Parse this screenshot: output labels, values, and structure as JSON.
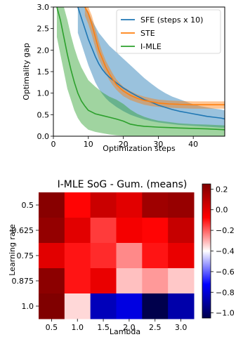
{
  "chart_data": [
    {
      "type": "line",
      "title": "",
      "xlabel": "Optimization steps",
      "ylabel": "Optimality gap",
      "xlim": [
        0,
        49
      ],
      "ylim": [
        0.0,
        3.0
      ],
      "xticks": [
        0,
        10,
        20,
        30,
        40
      ],
      "yticks": [
        0.0,
        0.5,
        1.0,
        1.5,
        2.0,
        2.5,
        3.0
      ],
      "ytick_labels": [
        "0.0",
        "0.5",
        "1.0",
        "1.5",
        "2.0",
        "2.5",
        "3.0"
      ],
      "legend_position": "top-right",
      "grid": false,
      "series": [
        {
          "name": "SFE (steps x 10)",
          "color": "#1f77b4",
          "x": [
            7,
            8,
            9,
            10,
            11,
            12,
            13,
            14,
            15,
            16,
            18,
            20,
            22,
            24,
            26,
            28,
            30,
            32,
            34,
            36,
            38,
            40,
            42,
            44,
            46,
            48,
            49
          ],
          "y": [
            3.0,
            2.75,
            2.5,
            2.25,
            2.05,
            1.85,
            1.68,
            1.55,
            1.45,
            1.37,
            1.24,
            1.12,
            1.02,
            0.93,
            0.85,
            0.79,
            0.72,
            0.67,
            0.62,
            0.58,
            0.55,
            0.52,
            0.49,
            0.46,
            0.44,
            0.42,
            0.4
          ],
          "upper": [
            3.0,
            3.0,
            3.0,
            2.9,
            2.7,
            2.55,
            2.4,
            2.3,
            2.2,
            2.1,
            1.95,
            1.8,
            1.65,
            1.5,
            1.35,
            1.22,
            1.1,
            1.0,
            0.92,
            0.86,
            0.8,
            0.74,
            0.7,
            0.67,
            0.64,
            0.62,
            0.6
          ],
          "lower": [
            2.4,
            2.15,
            1.9,
            1.65,
            1.45,
            1.25,
            1.1,
            0.98,
            0.88,
            0.8,
            0.68,
            0.58,
            0.5,
            0.44,
            0.39,
            0.35,
            0.32,
            0.3,
            0.28,
            0.26,
            0.25,
            0.24,
            0.23,
            0.22,
            0.21,
            0.2,
            0.2
          ]
        },
        {
          "name": "STE",
          "color": "#ff7f0e",
          "x": [
            9,
            10,
            11,
            12,
            13,
            14,
            15,
            16,
            17,
            18,
            19,
            20,
            22,
            24,
            26,
            28,
            30,
            33,
            36,
            40,
            44,
            49
          ],
          "y": [
            3.0,
            2.85,
            2.6,
            2.3,
            2.0,
            1.8,
            1.6,
            1.45,
            1.32,
            1.2,
            1.12,
            1.05,
            0.95,
            0.88,
            0.83,
            0.8,
            0.77,
            0.75,
            0.74,
            0.73,
            0.73,
            0.73
          ],
          "upper": [
            3.0,
            3.0,
            2.8,
            2.5,
            2.2,
            1.95,
            1.75,
            1.6,
            1.45,
            1.32,
            1.23,
            1.15,
            1.05,
            0.97,
            0.92,
            0.88,
            0.85,
            0.83,
            0.82,
            0.81,
            0.81,
            0.81
          ],
          "lower": [
            2.8,
            2.6,
            2.35,
            2.05,
            1.8,
            1.62,
            1.45,
            1.3,
            1.18,
            1.08,
            1.0,
            0.93,
            0.84,
            0.78,
            0.73,
            0.7,
            0.68,
            0.66,
            0.65,
            0.64,
            0.64,
            0.64
          ]
        },
        {
          "name": "I-MLE",
          "color": "#2ca02c",
          "x": [
            1,
            2,
            3,
            4,
            5,
            6,
            7,
            8,
            9,
            10,
            12,
            14,
            16,
            18,
            20,
            22,
            24,
            26,
            28,
            30,
            33,
            36,
            40,
            44,
            49
          ],
          "y": [
            3.0,
            2.7,
            2.3,
            1.9,
            1.55,
            1.25,
            1.0,
            0.82,
            0.7,
            0.6,
            0.52,
            0.48,
            0.44,
            0.4,
            0.35,
            0.28,
            0.25,
            0.23,
            0.22,
            0.21,
            0.2,
            0.19,
            0.18,
            0.17,
            0.15
          ],
          "upper": [
            3.0,
            3.0,
            3.0,
            2.7,
            2.35,
            2.05,
            1.8,
            1.6,
            1.45,
            1.3,
            1.15,
            1.02,
            0.92,
            0.85,
            0.75,
            0.62,
            0.52,
            0.45,
            0.4,
            0.36,
            0.33,
            0.3,
            0.28,
            0.27,
            0.25
          ],
          "lower": [
            2.3,
            1.9,
            1.5,
            1.1,
            0.85,
            0.6,
            0.42,
            0.3,
            0.22,
            0.15,
            0.1,
            0.07,
            0.04,
            0.02,
            0.01,
            0.0,
            0.0,
            0.0,
            0.0,
            0.0,
            0.0,
            0.0,
            0.0,
            0.0,
            0.0
          ]
        }
      ]
    },
    {
      "type": "heatmap",
      "title": "I-MLE SoG - Gum. (means)",
      "xlabel": "Lambda",
      "ylabel": "Learning rate",
      "x_categories": [
        "0.5",
        "1.0",
        "1.5",
        "2.0",
        "2.5",
        "3.0"
      ],
      "y_categories": [
        "0.5",
        "0.625",
        "0.75",
        "0.875",
        "1.0"
      ],
      "colormap": "seismic",
      "vmin": -1.05,
      "vmax": 0.25,
      "colorbar_ticks": [
        0.2,
        0.0,
        -0.2,
        -0.4,
        -0.6,
        -0.8,
        -1.0
      ],
      "colorbar_tick_labels": [
        "0.2",
        "0.0",
        "−0.2",
        "−0.4",
        "−0.6",
        "−0.8",
        "−1.0"
      ],
      "values": [
        [
          0.23,
          -0.08,
          0.06,
          0.0,
          0.17,
          0.19
        ],
        [
          0.2,
          0.0,
          -0.15,
          -0.05,
          -0.08,
          0.07
        ],
        [
          0.0,
          -0.1,
          -0.13,
          -0.25,
          -0.1,
          -0.02
        ],
        [
          0.22,
          -0.1,
          -0.02,
          -0.32,
          -0.27,
          -0.33
        ],
        [
          0.35,
          -0.35,
          -0.85,
          -0.78,
          -1.05,
          -0.88
        ]
      ]
    }
  ]
}
